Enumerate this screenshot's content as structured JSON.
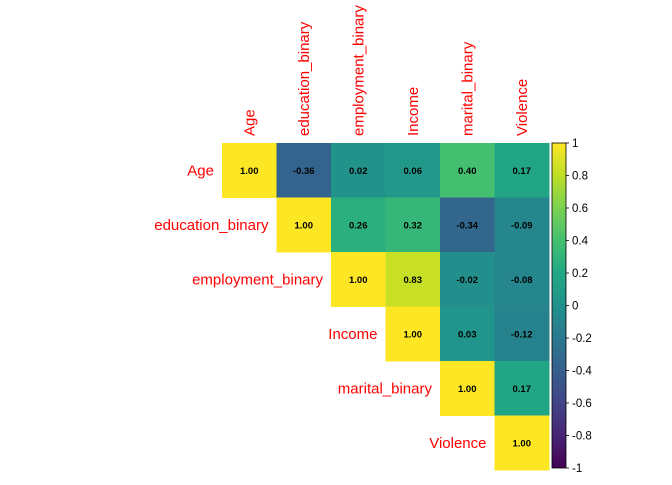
{
  "chart_data": {
    "type": "heatmap",
    "subtype": "upper-triangular correlation matrix",
    "variables": [
      "Age",
      "education_binary",
      "employment_binary",
      "Income",
      "marital_binary",
      "Violence"
    ],
    "matrix": [
      [
        1.0,
        -0.36,
        0.02,
        0.06,
        0.4,
        0.17
      ],
      [
        null,
        1.0,
        0.26,
        0.32,
        -0.34,
        -0.09
      ],
      [
        null,
        null,
        1.0,
        0.83,
        -0.02,
        -0.08
      ],
      [
        null,
        null,
        null,
        1.0,
        0.03,
        -0.12
      ],
      [
        null,
        null,
        null,
        null,
        1.0,
        0.17
      ],
      [
        null,
        null,
        null,
        null,
        null,
        1.0
      ]
    ],
    "value_format": "2 decimals",
    "label_color": "#ff0000",
    "value_label_color": "#000000",
    "colorscale": "viridis",
    "colorbar": {
      "range": [
        -1,
        1
      ],
      "ticks": [
        "1",
        "0.8",
        "0.6",
        "0.4",
        "0.2",
        "0",
        "-0.2",
        "-0.4",
        "-0.6",
        "-0.8",
        "-1"
      ]
    },
    "grid": false
  }
}
